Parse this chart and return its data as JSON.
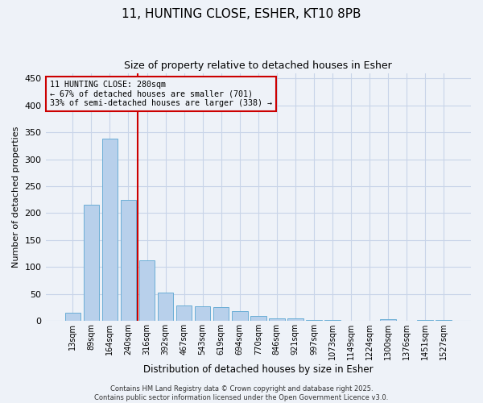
{
  "title1": "11, HUNTING CLOSE, ESHER, KT10 8PB",
  "title2": "Size of property relative to detached houses in Esher",
  "xlabel": "Distribution of detached houses by size in Esher",
  "ylabel": "Number of detached properties",
  "categories": [
    "13sqm",
    "89sqm",
    "164sqm",
    "240sqm",
    "316sqm",
    "392sqm",
    "467sqm",
    "543sqm",
    "619sqm",
    "694sqm",
    "770sqm",
    "846sqm",
    "921sqm",
    "997sqm",
    "1073sqm",
    "1149sqm",
    "1224sqm",
    "1300sqm",
    "1376sqm",
    "1451sqm",
    "1527sqm"
  ],
  "values": [
    15,
    216,
    338,
    224,
    113,
    53,
    28,
    27,
    26,
    18,
    9,
    5,
    4,
    1,
    1,
    0,
    0,
    3,
    0,
    2,
    1
  ],
  "bar_color": "#b8d0eb",
  "bar_edge_color": "#6baed6",
  "vline_x_index": 3.5,
  "vline_color": "#cc0000",
  "annotation_line1": "11 HUNTING CLOSE: 280sqm",
  "annotation_line2": "← 67% of detached houses are smaller (701)",
  "annotation_line3": "33% of semi-detached houses are larger (338) →",
  "annotation_box_color": "#cc0000",
  "grid_color": "#c8d4e8",
  "background_color": "#eef2f8",
  "footer_line1": "Contains HM Land Registry data © Crown copyright and database right 2025.",
  "footer_line2": "Contains public sector information licensed under the Open Government Licence v3.0.",
  "ylim": [
    0,
    460
  ],
  "yticks": [
    0,
    50,
    100,
    150,
    200,
    250,
    300,
    350,
    400,
    450
  ]
}
